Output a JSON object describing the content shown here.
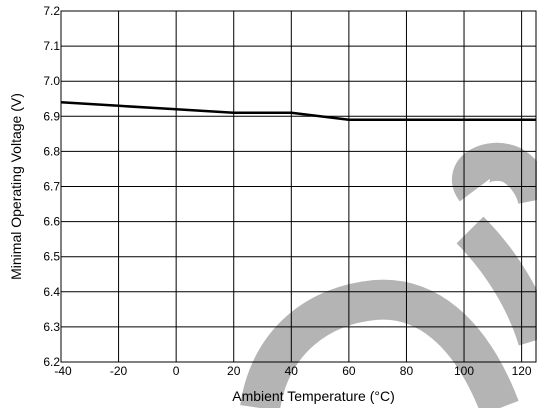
{
  "chart_data": {
    "type": "line",
    "title": "",
    "xlabel": "Ambient Temperature (°C)",
    "ylabel": "Minimal Operating Voltage (V)",
    "xlim": [
      -40,
      125
    ],
    "ylim": [
      6.2,
      7.2
    ],
    "x_ticks": [
      "-40",
      "-20",
      "0",
      "20",
      "40",
      "60",
      "80",
      "100",
      "120"
    ],
    "y_ticks": [
      "6.2",
      "6.3",
      "6.4",
      "6.5",
      "6.6",
      "6.7",
      "6.8",
      "6.9",
      "7.0",
      "7.1",
      "7.2"
    ],
    "grid": true,
    "series": [
      {
        "x": [
          -40,
          -20,
          0,
          20,
          40,
          60,
          80,
          100,
          125
        ],
        "y": [
          6.94,
          6.93,
          6.92,
          6.91,
          6.91,
          6.89,
          6.89,
          6.89,
          6.89
        ]
      }
    ]
  },
  "decoration": {
    "watermark_color": "#b4b4b4",
    "line_color": "#000000",
    "grid_color": "#000000"
  }
}
